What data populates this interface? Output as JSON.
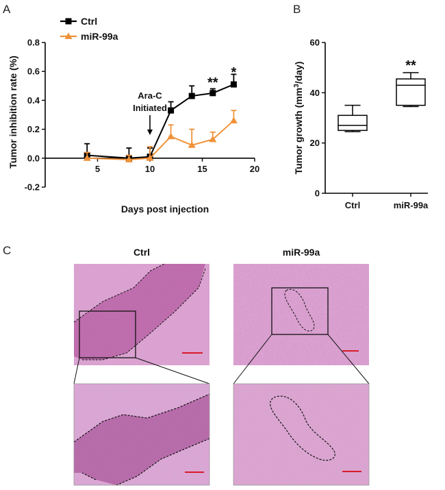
{
  "panel_labels": {
    "a": "A",
    "b": "B",
    "c": "C"
  },
  "colors": {
    "ctrl": "#000000",
    "mir": "#f0923a",
    "tissue": "#c56fb0",
    "scalebar": "#d81b2a"
  },
  "chart_data": [
    {
      "type": "line",
      "panel": "A",
      "xlabel": "Days post injection",
      "ylabel": "Tumor inhibition rate (%)",
      "xlim": [
        0,
        20
      ],
      "ylim": [
        -0.2,
        0.8
      ],
      "xticks": [
        "5",
        "10",
        "15",
        "20"
      ],
      "yticks": [
        "-0.2",
        "0.0",
        "0.2",
        "0.4",
        "0.6",
        "0.8"
      ],
      "series": [
        {
          "name": "Ctrl",
          "marker": "square",
          "x": [
            4,
            8,
            10,
            12,
            14,
            16,
            18
          ],
          "y": [
            0.02,
            0.0,
            0.01,
            0.33,
            0.43,
            0.45,
            0.51
          ],
          "err": [
            0.08,
            0.07,
            0.06,
            0.06,
            0.07,
            0.03,
            0.07
          ]
        },
        {
          "name": "miR-99a",
          "marker": "triangle",
          "x": [
            4,
            8,
            10,
            12,
            14,
            16,
            18
          ],
          "y": [
            0.0,
            -0.01,
            0.0,
            0.15,
            0.09,
            0.13,
            0.26
          ],
          "err": [
            0.04,
            0.03,
            0.08,
            0.08,
            0.11,
            0.05,
            0.07
          ]
        }
      ],
      "annotations": [
        {
          "text": "Ara-C",
          "x": 10,
          "y": 0.4
        },
        {
          "text": "Initiated",
          "x": 10,
          "y": 0.33
        },
        {
          "text": "**",
          "x": 16,
          "y": 0.53
        },
        {
          "text": "*",
          "x": 18,
          "y": 0.6
        }
      ]
    },
    {
      "type": "box",
      "panel": "B",
      "xlabel": "",
      "ylabel": "Tumor growth (mm3/day)",
      "ylabel_parts": {
        "before": "Tumor growth (mm",
        "sup": "3",
        "after": "/day)"
      },
      "ylim": [
        0,
        60
      ],
      "yticks": [
        "0",
        "20",
        "40",
        "60"
      ],
      "categories": [
        "Ctrl",
        "miR-99a"
      ],
      "boxes": [
        {
          "name": "Ctrl",
          "min": 24.5,
          "q1": 25,
          "median": 27,
          "q3": 31,
          "max": 35
        },
        {
          "name": "miR-99a",
          "min": 34.5,
          "q1": 35,
          "median": 43,
          "q3": 45.5,
          "max": 48
        }
      ],
      "significance": "**"
    }
  ],
  "histology": {
    "ctrl_label": "Ctrl",
    "mir_label": "miR-99a"
  }
}
